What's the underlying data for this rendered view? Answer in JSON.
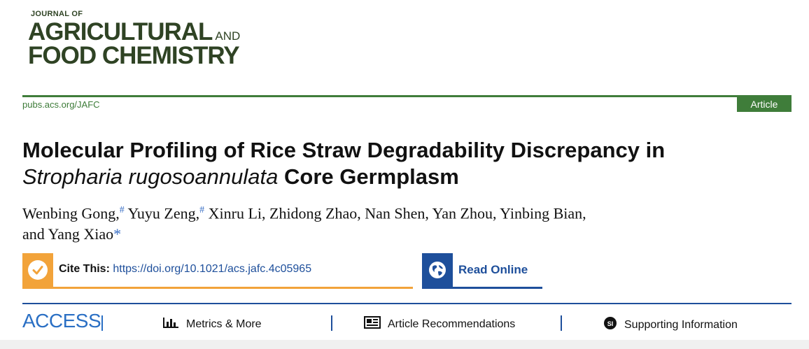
{
  "journal": {
    "line_top": "JOURNAL OF",
    "line_1": "AGRICULTURAL",
    "and": "AND",
    "line_2": "FOOD CHEMISTRY"
  },
  "header": {
    "site": "pubs.acs.org/JAFC",
    "badge": "Article"
  },
  "article": {
    "title_part1": "Molecular Profiling of Rice Straw Degradability Discrepancy in",
    "title_italic": "Stropharia rugosoannulata",
    "title_part2": "Core Germplasm",
    "authors_line1": "Wenbing Gong,",
    "mark1": "#",
    "authors_line1b": "Yuyu Zeng,",
    "mark2": "#",
    "authors_line1c": "Xinru Li, Zhidong Zhao, Nan Shen, Yan Zhou, Yinbing Bian,",
    "authors_line2": "and Yang Xiao",
    "mark3": "*"
  },
  "cite": {
    "label": "Cite This:",
    "doi": "https://doi.org/10.1021/acs.jafc.4c05965"
  },
  "read_online": {
    "label": "Read Online"
  },
  "access": {
    "label": "ACCESS",
    "tabs": [
      {
        "label": "Metrics & More",
        "icon": "bar-chart-icon"
      },
      {
        "label": "Article Recommendations",
        "icon": "newspaper-icon"
      },
      {
        "label": "Supporting Information",
        "icon": "si-badge-icon"
      }
    ]
  },
  "colors": {
    "green": "#3f7d3a",
    "orange": "#f2a33a",
    "blue": "#1e4f9b"
  }
}
